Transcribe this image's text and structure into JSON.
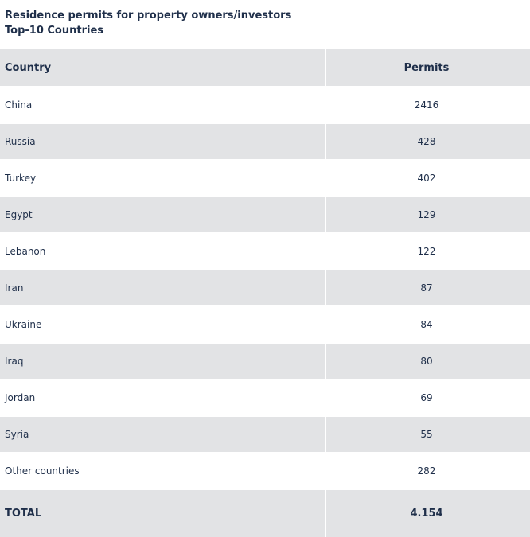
{
  "title_line1": "Residence permits for property owners/investors",
  "title_line2": "Top-10 Countries",
  "columns": [
    "Country",
    "Permits"
  ],
  "rows": [
    {
      "country": "China",
      "permits": "2416"
    },
    {
      "country": "Russia",
      "permits": "428"
    },
    {
      "country": "Turkey",
      "permits": "402"
    },
    {
      "country": "Egypt",
      "permits": "129"
    },
    {
      "country": "Lebanon",
      "permits": "122"
    },
    {
      "country": "Iran",
      "permits": "87"
    },
    {
      "country": "Ukraine",
      "permits": "84"
    },
    {
      "country": "Iraq",
      "permits": "80"
    },
    {
      "country": "Jordan",
      "permits": "69"
    },
    {
      "country": "Syria",
      "permits": "55"
    },
    {
      "country": "Other countries",
      "permits": "282"
    }
  ],
  "total": {
    "label": "TOTAL",
    "value": "4.154"
  },
  "colors": {
    "text": "#1f2f4a",
    "shade": "#e2e3e5",
    "background": "#ffffff"
  },
  "chart_data": {
    "type": "table",
    "title": "Residence permits for property owners/investors",
    "subtitle": "Top-10 Countries",
    "columns": [
      "Country",
      "Permits"
    ],
    "categories": [
      "China",
      "Russia",
      "Turkey",
      "Egypt",
      "Lebanon",
      "Iran",
      "Ukraine",
      "Iraq",
      "Jordan",
      "Syria",
      "Other countries"
    ],
    "values": [
      2416,
      428,
      402,
      129,
      122,
      87,
      84,
      80,
      69,
      55,
      282
    ],
    "total": 4154
  }
}
